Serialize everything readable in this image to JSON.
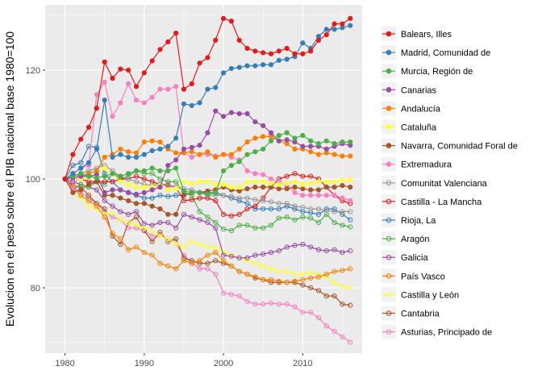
{
  "chart_data": {
    "type": "line",
    "title": "",
    "xlabel": "",
    "ylabel": "Evolucion en el peso sobre el PIB nacional base 1980=100",
    "xlim": [
      1977.5,
      2017.5
    ],
    "ylim": [
      68,
      132
    ],
    "xticks": [
      1980,
      1990,
      2000,
      2010
    ],
    "yticks": [
      80,
      100,
      120
    ],
    "grid": true,
    "legend_position": "right",
    "panel_background": "#ebebeb",
    "series": [
      {
        "name": "Balears, Illes",
        "color": "#e41a1c",
        "marker": "filled",
        "start": 1980,
        "values": [
          100,
          104.5,
          107.3,
          109.5,
          113,
          121.5,
          118.5,
          120.2,
          120,
          117,
          119.5,
          121.7,
          123.8,
          125.2,
          126.8,
          116.5,
          117.5,
          121.3,
          122.3,
          125.5,
          129.5,
          129,
          125.5,
          124,
          123.5,
          123.2,
          123,
          123.5,
          124,
          123,
          123,
          123.5,
          125.5,
          126.5,
          128.5,
          128.5,
          129.5
        ]
      },
      {
        "name": "Madrid, Comunidad de",
        "color": "#377eb8",
        "marker": "filled",
        "start": 1980,
        "values": [
          100,
          101,
          102,
          103,
          105.5,
          114.5,
          104,
          104.5,
          104,
          104,
          104.5,
          105.2,
          105.5,
          106,
          107.5,
          113.8,
          113.5,
          114,
          116.5,
          116.8,
          119.5,
          120.3,
          120.5,
          120.8,
          120.8,
          121,
          121,
          121.8,
          122,
          122.5,
          125,
          124,
          126.2,
          127.5,
          127.5,
          127.8,
          128.2
        ]
      },
      {
        "name": "Murcia, Región de",
        "color": "#4daf4a",
        "marker": "filled",
        "start": 1980,
        "values": [
          100,
          100.5,
          101,
          100.5,
          100.2,
          100.5,
          101,
          100.5,
          101,
          101.5,
          101.5,
          102,
          101.5,
          101.5,
          102,
          97.8,
          97.5,
          97.5,
          97.2,
          97.5,
          101.5,
          102.5,
          103.2,
          104.5,
          105,
          105.5,
          107,
          108,
          108.5,
          107.5,
          108,
          107,
          106.5,
          107,
          106.5,
          106.8,
          106.8
        ]
      },
      {
        "name": "Canarias",
        "color": "#984ea3",
        "marker": "filled",
        "start": 1980,
        "values": [
          100,
          100.2,
          100.5,
          100.5,
          100.8,
          97.5,
          98,
          98,
          97.5,
          97.2,
          97.5,
          98,
          98.5,
          102.5,
          103.5,
          105.5,
          105.8,
          106.2,
          108.5,
          112.5,
          111.5,
          112.2,
          112,
          112,
          110.5,
          109.8,
          108.5,
          107,
          107.2,
          106.8,
          106,
          106,
          106,
          105.5,
          106,
          106.5,
          106.2
        ]
      },
      {
        "name": "Andalucía",
        "color": "#ff7f00",
        "marker": "filled",
        "start": 1980,
        "values": [
          100,
          101,
          100.5,
          101,
          101.5,
          104,
          104.5,
          105.5,
          105,
          104.8,
          106.8,
          107,
          106.8,
          105.5,
          104.8,
          104.8,
          105,
          104.5,
          105,
          104,
          104.5,
          104.5,
          105.5,
          106.8,
          107.5,
          107.8,
          107.8,
          107,
          106.5,
          105.5,
          105.5,
          105,
          104.5,
          104.8,
          104.5,
          104.2,
          104.2
        ]
      },
      {
        "name": "Cataluña",
        "color": "#ffff33",
        "marker": "filled",
        "start": 1980,
        "values": [
          100,
          100.5,
          100,
          100.3,
          101,
          102,
          101,
          99.5,
          99,
          98.5,
          98.5,
          98.5,
          98.8,
          98,
          98.2,
          99.5,
          99.2,
          99.5,
          99.5,
          99,
          99,
          98.5,
          98.5,
          99.5,
          99.5,
          99.5,
          99.2,
          99,
          99.2,
          99.5,
          99,
          99.2,
          99.5,
          99.5,
          99.5,
          99.8,
          99.8
        ]
      },
      {
        "name": "Navarra, Comunidad Foral de",
        "color": "#a65628",
        "marker": "filled",
        "start": 1980,
        "values": [
          100,
          97.5,
          98,
          99,
          99.5,
          97,
          97,
          96.5,
          96,
          95.5,
          95.5,
          95,
          94.5,
          93.5,
          93.5,
          97,
          97.5,
          97.5,
          97.8,
          98,
          98.5,
          98,
          97.8,
          98.2,
          98.5,
          98.5,
          98.5,
          98.2,
          98.2,
          98.5,
          98.2,
          98,
          98,
          98.5,
          98.5,
          98.8,
          98.5
        ]
      },
      {
        "name": "Extremadura",
        "color": "#f781bf",
        "marker": "filled",
        "start": 1980,
        "values": [
          100,
          98,
          102,
          102.5,
          115.5,
          117.8,
          111.5,
          114,
          117.5,
          114.5,
          114,
          115,
          116.5,
          116.5,
          117,
          104.8,
          104,
          104.5,
          104.5,
          104.2,
          104.5,
          104,
          103.5,
          101.5,
          101,
          100.8,
          100,
          99.5,
          98.8,
          97.5,
          97,
          97,
          97,
          97,
          97,
          96.5,
          96
        ]
      },
      {
        "name": "Comunitat Valenciana",
        "color": "#999999",
        "marker": "hollow",
        "start": 1980,
        "values": [
          100,
          100.5,
          101,
          101.5,
          102,
          102.5,
          101.5,
          100.5,
          100,
          99.5,
          99,
          98.8,
          99,
          99,
          98.5,
          98.2,
          98,
          97.5,
          97,
          97,
          97,
          96.8,
          96.5,
          96.5,
          96.2,
          96,
          95.8,
          95.5,
          95.5,
          95,
          94.8,
          94.5,
          94.5,
          94.2,
          94,
          94,
          94
        ]
      },
      {
        "name": "Castilla - La Mancha",
        "color": "#e41a1c",
        "marker": "hollow",
        "start": 1980,
        "values": [
          100,
          100.5,
          100,
          99.5,
          99.5,
          99.5,
          99.5,
          100,
          100,
          100.5,
          100,
          99.5,
          99,
          98.8,
          98.5,
          96,
          96.2,
          96.5,
          96.5,
          96,
          93.5,
          93.2,
          93.5,
          94.5,
          95,
          96.5,
          98.5,
          100,
          100.5,
          101,
          100.5,
          100.5,
          100,
          98.5,
          97,
          96,
          95.5
        ]
      },
      {
        "name": "Rioja, La",
        "color": "#377eb8",
        "marker": "hollow",
        "start": 1980,
        "values": [
          100,
          102.5,
          103,
          106,
          105.8,
          101,
          99.5,
          98,
          97.5,
          97,
          96.5,
          96.5,
          97,
          96.8,
          97,
          97,
          97.5,
          97.5,
          97.5,
          97.5,
          97,
          96.5,
          96,
          95.5,
          94.5,
          94.5,
          94.5,
          94.5,
          95,
          94.5,
          94,
          93.8,
          93.5,
          94.5,
          94.5,
          93.5,
          92.5
        ]
      },
      {
        "name": "Aragón",
        "color": "#4daf4a",
        "marker": "hollow",
        "start": 1980,
        "values": [
          100,
          98,
          99,
          98.5,
          99.5,
          99,
          101,
          100,
          100.5,
          101.5,
          101,
          101,
          100,
          99.5,
          99.5,
          97.5,
          97,
          94,
          93,
          92,
          90.8,
          90.5,
          91.5,
          91.5,
          91,
          91,
          91.5,
          92.8,
          93,
          92.5,
          93,
          92.8,
          92,
          93.5,
          92,
          91.5,
          91.2
        ]
      },
      {
        "name": "Galicia",
        "color": "#984ea3",
        "marker": "hollow",
        "start": 1980,
        "values": [
          100,
          99.5,
          99,
          98.5,
          98,
          96,
          95,
          94,
          93.5,
          94,
          91.8,
          91.5,
          92,
          92,
          91,
          93.5,
          93,
          92.5,
          92,
          91,
          86,
          85.8,
          85.5,
          85.5,
          86,
          86.2,
          86.5,
          86.8,
          87.5,
          87.8,
          88,
          87.5,
          87,
          86.8,
          87,
          86.5,
          86.8
        ]
      },
      {
        "name": "País Vasco",
        "color": "#ff7f00",
        "marker": "hollow",
        "start": 1980,
        "values": [
          100,
          98.5,
          97,
          96,
          95,
          93,
          90,
          89,
          87,
          87.5,
          86.5,
          86,
          84.5,
          84,
          83.5,
          85,
          84.5,
          85,
          86,
          86.5,
          85,
          84,
          83,
          82.5,
          82,
          81.5,
          81.5,
          81.2,
          81,
          81.2,
          81.5,
          81.8,
          82,
          82.5,
          83,
          83.2,
          83.5
        ]
      },
      {
        "name": "Castilla y León",
        "color": "#ffff33",
        "marker": "hollow",
        "start": 1980,
        "values": [
          100,
          97.5,
          96.5,
          95,
          94.5,
          93.5,
          93.8,
          92.5,
          92,
          91.5,
          91,
          90.5,
          89.5,
          89,
          88,
          87.5,
          88.5,
          88,
          87.5,
          87.5,
          86.5,
          86,
          85.5,
          85,
          84.5,
          84,
          83.5,
          83,
          83,
          82.5,
          82.5,
          82.8,
          82.5,
          82,
          81,
          80.2,
          80
        ]
      },
      {
        "name": "Cantabria",
        "color": "#a65628",
        "marker": "hollow",
        "start": 1980,
        "values": [
          100,
          98.8,
          98.5,
          97,
          95.5,
          94.5,
          89.5,
          88,
          92,
          93,
          90.5,
          88.5,
          90.2,
          88.5,
          89,
          85.5,
          85,
          84.5,
          84.5,
          85,
          84.5,
          84,
          83,
          82.5,
          81.8,
          81.5,
          81,
          81,
          81,
          81,
          80.5,
          80,
          79.5,
          78.5,
          78.5,
          77,
          76.8
        ]
      },
      {
        "name": "Asturias, Principado de",
        "color": "#f781bf",
        "marker": "hollow",
        "start": 1980,
        "values": [
          100,
          98.5,
          97.5,
          96.5,
          95.5,
          94,
          93,
          92.5,
          91,
          91,
          90.5,
          89.5,
          89.5,
          89,
          88,
          86,
          84.5,
          83.5,
          83.5,
          82.5,
          79,
          78.8,
          78.5,
          77.5,
          77,
          77,
          77.2,
          77,
          77,
          76.5,
          75.5,
          75.5,
          74.5,
          73,
          72,
          71,
          70
        ]
      }
    ]
  }
}
